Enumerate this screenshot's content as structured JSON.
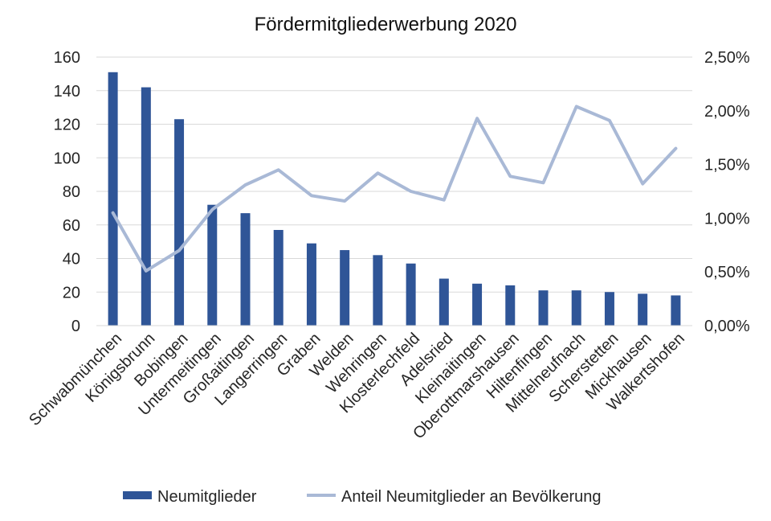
{
  "chart_data": {
    "type": "bar",
    "title": "Fördermitgliederwerbung 2020",
    "categories": [
      "Schwabmünchen",
      "Königsbrunn",
      "Bobingen",
      "Untermeitingen",
      "Großaitingen",
      "Langerringen",
      "Graben",
      "Welden",
      "Wehringen",
      "Klosterlechfeld",
      "Adelsried",
      "Kleinaitingen",
      "Oberottmarshausen",
      "Hiltenfingen",
      "Mittelneufnach",
      "Scherstetten",
      "Mickhausen",
      "Walkertshofen"
    ],
    "series": [
      {
        "name": "Neumitglieder",
        "kind": "bar",
        "axis": "left",
        "color": "#2f5597",
        "values": [
          151,
          142,
          123,
          72,
          67,
          57,
          49,
          45,
          42,
          37,
          28,
          25,
          24,
          21,
          21,
          20,
          19,
          18
        ]
      },
      {
        "name": "Anteil Neumitglieder an Bevölkerung",
        "kind": "line",
        "axis": "right",
        "color": "#a9b9d6",
        "values": [
          1.05,
          0.51,
          0.7,
          1.08,
          1.31,
          1.45,
          1.21,
          1.16,
          1.42,
          1.25,
          1.17,
          1.93,
          1.39,
          1.33,
          2.04,
          1.91,
          1.32,
          1.65
        ]
      }
    ],
    "y_left": {
      "min": 0,
      "max": 160,
      "ticks": [
        "0",
        "20",
        "40",
        "60",
        "80",
        "100",
        "120",
        "140",
        "160"
      ]
    },
    "y_right": {
      "min": 0,
      "max": 2.5,
      "unit": "%",
      "ticks": [
        "0,00%",
        "0,50%",
        "1,00%",
        "1,50%",
        "2,00%",
        "2,50%"
      ]
    },
    "grid": true,
    "legend_position": "bottom"
  }
}
